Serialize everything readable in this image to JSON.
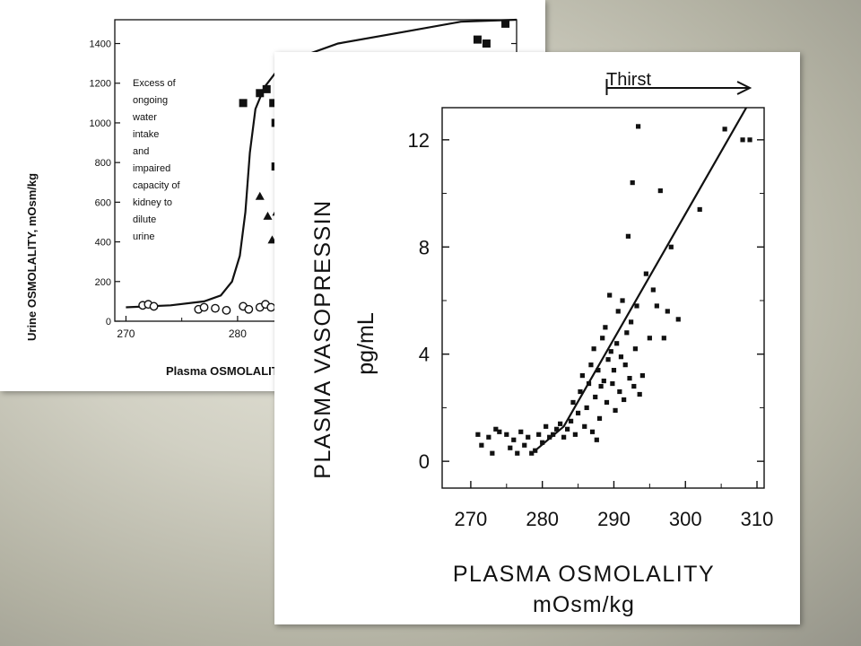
{
  "chart_data": [
    {
      "type": "scatter",
      "title": "",
      "xlabel": "Plasma OSMOLALITY",
      "ylabel": "Urine OSMOLALITY, mOsm/kg",
      "xlim": [
        269,
        305
      ],
      "ylim": [
        0,
        1520
      ],
      "x_ticks": [
        "270",
        "280"
      ],
      "y_ticks": [
        "0",
        "200",
        "400",
        "600",
        "800",
        "1000",
        "1200",
        "1400"
      ],
      "annotation": [
        "Excess of",
        "ongoing",
        "water",
        "intake",
        "and",
        "impaired",
        "capacity of",
        "kidney to",
        "dilute",
        "urine"
      ],
      "curve": [
        [
          270,
          70
        ],
        [
          274,
          80
        ],
        [
          277,
          100
        ],
        [
          278.5,
          130
        ],
        [
          279.5,
          200
        ],
        [
          280.2,
          330
        ],
        [
          280.7,
          550
        ],
        [
          281.1,
          850
        ],
        [
          281.6,
          1070
        ],
        [
          282.4,
          1180
        ],
        [
          283.5,
          1260
        ],
        [
          285,
          1320
        ],
        [
          289,
          1400
        ],
        [
          295,
          1460
        ],
        [
          300,
          1510
        ],
        [
          305,
          1520
        ]
      ],
      "series": [
        {
          "name": "",
          "marker": "open-circle",
          "points": [
            [
              271.5,
              80
            ],
            [
              272,
              85
            ],
            [
              272.5,
              75
            ],
            [
              276.5,
              60
            ],
            [
              277,
              70
            ],
            [
              278,
              65
            ],
            [
              279,
              55
            ],
            [
              280.5,
              75
            ],
            [
              281,
              60
            ],
            [
              282,
              70
            ],
            [
              282.5,
              85
            ],
            [
              283,
              70
            ],
            [
              284,
              80
            ]
          ]
        },
        {
          "name": "",
          "marker": "square",
          "points": [
            [
              280.5,
              1100
            ],
            [
              282,
              1150
            ],
            [
              282.6,
              1170
            ],
            [
              283.2,
              1100
            ],
            [
              283.4,
              1000
            ],
            [
              283.8,
              920
            ],
            [
              283.4,
              780
            ],
            [
              284.5,
              1000
            ],
            [
              301.5,
              1420
            ],
            [
              302.3,
              1400
            ],
            [
              304,
              1500
            ]
          ]
        },
        {
          "name": "",
          "marker": "triangle",
          "points": [
            [
              282,
              630
            ],
            [
              282.7,
              530
            ],
            [
              283.1,
              410
            ],
            [
              283.5,
              550
            ],
            [
              284,
              430
            ],
            [
              284.3,
              560
            ]
          ]
        }
      ]
    },
    {
      "type": "scatter",
      "title": "",
      "xlabel": "PLASMA OSMOLALITY",
      "xunit": "mOsm/kg",
      "ylabel": "PLASMA VASOPRESSIN",
      "yunit": "pg/mL",
      "xlim": [
        266,
        311
      ],
      "ylim": [
        -1,
        13.2
      ],
      "x_ticks": [
        "270",
        "280",
        "290",
        "300",
        "310"
      ],
      "y_ticks": [
        "0",
        "4",
        "8",
        "12"
      ],
      "annotation": "Thirst",
      "thirst_range": [
        289,
        309
      ],
      "regression_line": [
        [
          279,
          0.4
        ],
        [
          283,
          1.3
        ],
        [
          308.5,
          13.2
        ]
      ],
      "points": [
        [
          271,
          1.0
        ],
        [
          271.5,
          0.6
        ],
        [
          272.5,
          0.9
        ],
        [
          273,
          0.3
        ],
        [
          273.5,
          1.2
        ],
        [
          274,
          1.1
        ],
        [
          275,
          1.0
        ],
        [
          275.5,
          0.5
        ],
        [
          276,
          0.8
        ],
        [
          276.5,
          0.3
        ],
        [
          277,
          1.1
        ],
        [
          277.5,
          0.6
        ],
        [
          278,
          0.9
        ],
        [
          278.5,
          0.3
        ],
        [
          279,
          0.4
        ],
        [
          279.5,
          1.0
        ],
        [
          280,
          0.7
        ],
        [
          280.5,
          1.3
        ],
        [
          281,
          0.9
        ],
        [
          281.5,
          1.0
        ],
        [
          282,
          1.2
        ],
        [
          282.5,
          1.4
        ],
        [
          283,
          0.9
        ],
        [
          283.5,
          1.2
        ],
        [
          284,
          1.5
        ],
        [
          284.3,
          2.2
        ],
        [
          284.6,
          1.0
        ],
        [
          285,
          1.8
        ],
        [
          285.3,
          2.6
        ],
        [
          285.6,
          3.2
        ],
        [
          285.9,
          1.3
        ],
        [
          286.2,
          2.0
        ],
        [
          286.5,
          2.9
        ],
        [
          286.8,
          3.6
        ],
        [
          287,
          1.1
        ],
        [
          287.2,
          4.2
        ],
        [
          287.4,
          2.4
        ],
        [
          287.6,
          0.8
        ],
        [
          287.8,
          3.4
        ],
        [
          288,
          1.6
        ],
        [
          288.2,
          2.8
        ],
        [
          288.4,
          4.6
        ],
        [
          288.6,
          3.0
        ],
        [
          288.8,
          5.0
        ],
        [
          289,
          2.2
        ],
        [
          289.2,
          3.8
        ],
        [
          289.4,
          6.2
        ],
        [
          289.6,
          4.1
        ],
        [
          289.8,
          2.9
        ],
        [
          290,
          3.4
        ],
        [
          290.2,
          1.9
        ],
        [
          290.4,
          4.4
        ],
        [
          290.6,
          5.6
        ],
        [
          290.8,
          2.6
        ],
        [
          291,
          3.9
        ],
        [
          291.2,
          6.0
        ],
        [
          291.4,
          2.3
        ],
        [
          291.6,
          3.6
        ],
        [
          291.8,
          4.8
        ],
        [
          292,
          8.4
        ],
        [
          292.2,
          3.1
        ],
        [
          292.4,
          5.2
        ],
        [
          292.6,
          10.4
        ],
        [
          292.8,
          2.8
        ],
        [
          293,
          4.2
        ],
        [
          293.2,
          5.8
        ],
        [
          293.4,
          12.5
        ],
        [
          293.6,
          2.5
        ],
        [
          294,
          3.2
        ],
        [
          294.5,
          7.0
        ],
        [
          295,
          4.6
        ],
        [
          295.5,
          6.4
        ],
        [
          296,
          5.8
        ],
        [
          296.5,
          10.1
        ],
        [
          297,
          4.6
        ],
        [
          297.5,
          5.6
        ],
        [
          298,
          8.0
        ],
        [
          299,
          5.3
        ],
        [
          302,
          9.4
        ],
        [
          305.5,
          12.4
        ],
        [
          308,
          12.0
        ],
        [
          309,
          12.0
        ]
      ]
    }
  ]
}
